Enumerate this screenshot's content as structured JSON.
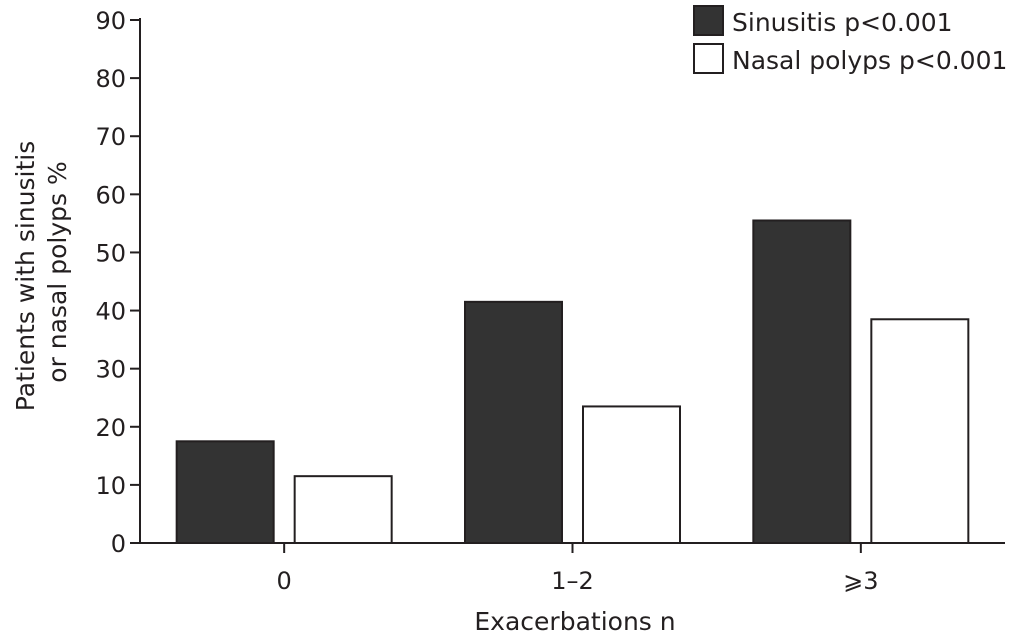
{
  "chart_data": {
    "type": "bar",
    "title": "",
    "xlabel": "Exacerbations n",
    "ylabel_lines": [
      "Patients with sinusitis",
      "or nasal polyps %"
    ],
    "categories": [
      "0",
      "1–2",
      "⩾3"
    ],
    "series": [
      {
        "name": "Sinusitis p<0.001",
        "values": [
          17.5,
          41.5,
          55.5
        ],
        "color": "#333333",
        "style": "filled"
      },
      {
        "name": "Nasal polyps p<0.001",
        "values": [
          11.5,
          23.5,
          38.5
        ],
        "color": "#ffffff",
        "style": "outline"
      }
    ],
    "ylim": [
      0,
      90
    ],
    "yticks": [
      0,
      10,
      20,
      30,
      40,
      50,
      60,
      70,
      80,
      90
    ],
    "grid": false,
    "legend_position": "top-right"
  }
}
